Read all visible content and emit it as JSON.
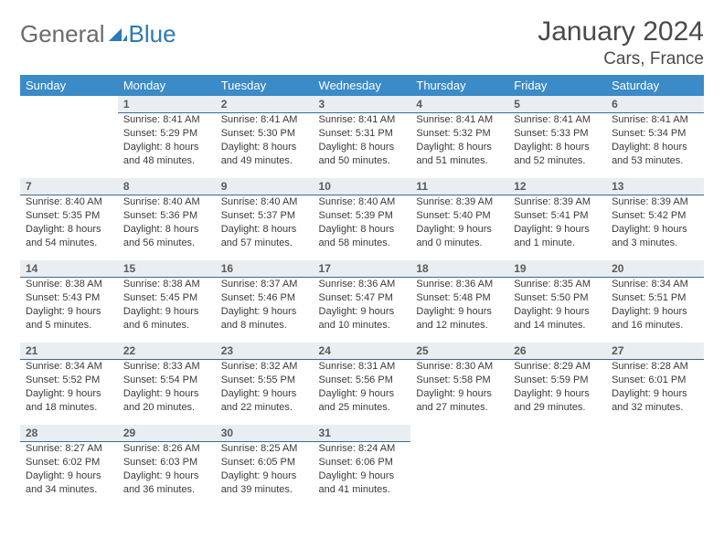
{
  "logo": {
    "word1": "General",
    "word2": "Blue",
    "sail_color": "#2a7ab8"
  },
  "title": "January 2024",
  "location": "Cars, France",
  "colors": {
    "header_bg": "#3b8bc8",
    "header_text": "#ffffff",
    "daynum_bg": "#e9eef2",
    "daynum_border": "#3b6a93",
    "body_text": "#3a3a3a"
  },
  "weekdays": [
    "Sunday",
    "Monday",
    "Tuesday",
    "Wednesday",
    "Thursday",
    "Friday",
    "Saturday"
  ],
  "weeks": [
    [
      null,
      {
        "n": "1",
        "sr": "Sunrise: 8:41 AM",
        "ss": "Sunset: 5:29 PM",
        "d1": "Daylight: 8 hours",
        "d2": "and 48 minutes."
      },
      {
        "n": "2",
        "sr": "Sunrise: 8:41 AM",
        "ss": "Sunset: 5:30 PM",
        "d1": "Daylight: 8 hours",
        "d2": "and 49 minutes."
      },
      {
        "n": "3",
        "sr": "Sunrise: 8:41 AM",
        "ss": "Sunset: 5:31 PM",
        "d1": "Daylight: 8 hours",
        "d2": "and 50 minutes."
      },
      {
        "n": "4",
        "sr": "Sunrise: 8:41 AM",
        "ss": "Sunset: 5:32 PM",
        "d1": "Daylight: 8 hours",
        "d2": "and 51 minutes."
      },
      {
        "n": "5",
        "sr": "Sunrise: 8:41 AM",
        "ss": "Sunset: 5:33 PM",
        "d1": "Daylight: 8 hours",
        "d2": "and 52 minutes."
      },
      {
        "n": "6",
        "sr": "Sunrise: 8:41 AM",
        "ss": "Sunset: 5:34 PM",
        "d1": "Daylight: 8 hours",
        "d2": "and 53 minutes."
      }
    ],
    [
      {
        "n": "7",
        "sr": "Sunrise: 8:40 AM",
        "ss": "Sunset: 5:35 PM",
        "d1": "Daylight: 8 hours",
        "d2": "and 54 minutes."
      },
      {
        "n": "8",
        "sr": "Sunrise: 8:40 AM",
        "ss": "Sunset: 5:36 PM",
        "d1": "Daylight: 8 hours",
        "d2": "and 56 minutes."
      },
      {
        "n": "9",
        "sr": "Sunrise: 8:40 AM",
        "ss": "Sunset: 5:37 PM",
        "d1": "Daylight: 8 hours",
        "d2": "and 57 minutes."
      },
      {
        "n": "10",
        "sr": "Sunrise: 8:40 AM",
        "ss": "Sunset: 5:39 PM",
        "d1": "Daylight: 8 hours",
        "d2": "and 58 minutes."
      },
      {
        "n": "11",
        "sr": "Sunrise: 8:39 AM",
        "ss": "Sunset: 5:40 PM",
        "d1": "Daylight: 9 hours",
        "d2": "and 0 minutes."
      },
      {
        "n": "12",
        "sr": "Sunrise: 8:39 AM",
        "ss": "Sunset: 5:41 PM",
        "d1": "Daylight: 9 hours",
        "d2": "and 1 minute."
      },
      {
        "n": "13",
        "sr": "Sunrise: 8:39 AM",
        "ss": "Sunset: 5:42 PM",
        "d1": "Daylight: 9 hours",
        "d2": "and 3 minutes."
      }
    ],
    [
      {
        "n": "14",
        "sr": "Sunrise: 8:38 AM",
        "ss": "Sunset: 5:43 PM",
        "d1": "Daylight: 9 hours",
        "d2": "and 5 minutes."
      },
      {
        "n": "15",
        "sr": "Sunrise: 8:38 AM",
        "ss": "Sunset: 5:45 PM",
        "d1": "Daylight: 9 hours",
        "d2": "and 6 minutes."
      },
      {
        "n": "16",
        "sr": "Sunrise: 8:37 AM",
        "ss": "Sunset: 5:46 PM",
        "d1": "Daylight: 9 hours",
        "d2": "and 8 minutes."
      },
      {
        "n": "17",
        "sr": "Sunrise: 8:36 AM",
        "ss": "Sunset: 5:47 PM",
        "d1": "Daylight: 9 hours",
        "d2": "and 10 minutes."
      },
      {
        "n": "18",
        "sr": "Sunrise: 8:36 AM",
        "ss": "Sunset: 5:48 PM",
        "d1": "Daylight: 9 hours",
        "d2": "and 12 minutes."
      },
      {
        "n": "19",
        "sr": "Sunrise: 8:35 AM",
        "ss": "Sunset: 5:50 PM",
        "d1": "Daylight: 9 hours",
        "d2": "and 14 minutes."
      },
      {
        "n": "20",
        "sr": "Sunrise: 8:34 AM",
        "ss": "Sunset: 5:51 PM",
        "d1": "Daylight: 9 hours",
        "d2": "and 16 minutes."
      }
    ],
    [
      {
        "n": "21",
        "sr": "Sunrise: 8:34 AM",
        "ss": "Sunset: 5:52 PM",
        "d1": "Daylight: 9 hours",
        "d2": "and 18 minutes."
      },
      {
        "n": "22",
        "sr": "Sunrise: 8:33 AM",
        "ss": "Sunset: 5:54 PM",
        "d1": "Daylight: 9 hours",
        "d2": "and 20 minutes."
      },
      {
        "n": "23",
        "sr": "Sunrise: 8:32 AM",
        "ss": "Sunset: 5:55 PM",
        "d1": "Daylight: 9 hours",
        "d2": "and 22 minutes."
      },
      {
        "n": "24",
        "sr": "Sunrise: 8:31 AM",
        "ss": "Sunset: 5:56 PM",
        "d1": "Daylight: 9 hours",
        "d2": "and 25 minutes."
      },
      {
        "n": "25",
        "sr": "Sunrise: 8:30 AM",
        "ss": "Sunset: 5:58 PM",
        "d1": "Daylight: 9 hours",
        "d2": "and 27 minutes."
      },
      {
        "n": "26",
        "sr": "Sunrise: 8:29 AM",
        "ss": "Sunset: 5:59 PM",
        "d1": "Daylight: 9 hours",
        "d2": "and 29 minutes."
      },
      {
        "n": "27",
        "sr": "Sunrise: 8:28 AM",
        "ss": "Sunset: 6:01 PM",
        "d1": "Daylight: 9 hours",
        "d2": "and 32 minutes."
      }
    ],
    [
      {
        "n": "28",
        "sr": "Sunrise: 8:27 AM",
        "ss": "Sunset: 6:02 PM",
        "d1": "Daylight: 9 hours",
        "d2": "and 34 minutes."
      },
      {
        "n": "29",
        "sr": "Sunrise: 8:26 AM",
        "ss": "Sunset: 6:03 PM",
        "d1": "Daylight: 9 hours",
        "d2": "and 36 minutes."
      },
      {
        "n": "30",
        "sr": "Sunrise: 8:25 AM",
        "ss": "Sunset: 6:05 PM",
        "d1": "Daylight: 9 hours",
        "d2": "and 39 minutes."
      },
      {
        "n": "31",
        "sr": "Sunrise: 8:24 AM",
        "ss": "Sunset: 6:06 PM",
        "d1": "Daylight: 9 hours",
        "d2": "and 41 minutes."
      },
      null,
      null,
      null
    ]
  ]
}
